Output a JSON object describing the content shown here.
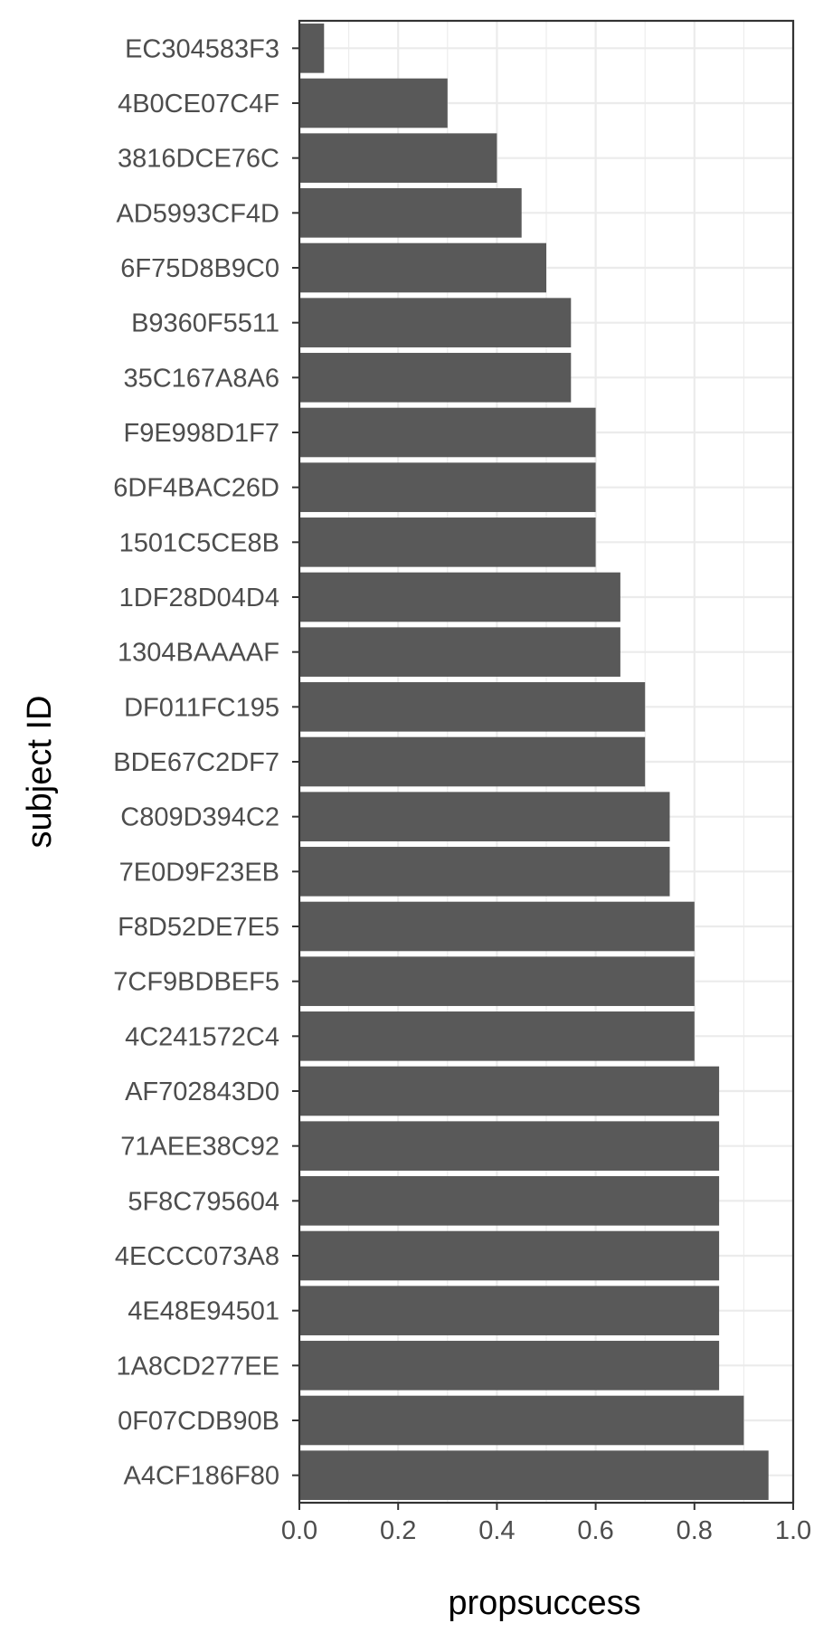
{
  "chart_data": {
    "type": "bar",
    "orientation": "horizontal",
    "title": "",
    "xlabel": "propsuccess",
    "ylabel": "subject ID",
    "xlim": [
      0,
      1
    ],
    "x_ticks": [
      "0.0",
      "0.2",
      "0.4",
      "0.6",
      "0.8",
      "1.0"
    ],
    "grid": true,
    "categories": [
      "EC304583F3",
      "4B0CE07C4F",
      "3816DCE76C",
      "AD5993CF4D",
      "6F75D8B9C0",
      "B9360F5511",
      "35C167A8A6",
      "F9E998D1F7",
      "6DF4BAC26D",
      "1501C5CE8B",
      "1DF28D04D4",
      "1304BAAAAF",
      "DF011FC195",
      "BDE67C2DF7",
      "C809D394C2",
      "7E0D9F23EB",
      "F8D52DE7E5",
      "7CF9BDBEF5",
      "4C241572C4",
      "AF702843D0",
      "71AEE38C92",
      "5F8C795604",
      "4ECCC073A8",
      "4E48E94501",
      "1A8CD277EE",
      "0F07CDB90B",
      "A4CF186F80"
    ],
    "values": [
      0.05,
      0.3,
      0.4,
      0.45,
      0.5,
      0.55,
      0.55,
      0.6,
      0.6,
      0.6,
      0.65,
      0.65,
      0.7,
      0.7,
      0.75,
      0.75,
      0.8,
      0.8,
      0.8,
      0.85,
      0.85,
      0.85,
      0.85,
      0.85,
      0.85,
      0.9,
      0.95
    ],
    "bar_color": "#595959",
    "grid_color": "#ebebeb",
    "axis_color": "#333333"
  }
}
